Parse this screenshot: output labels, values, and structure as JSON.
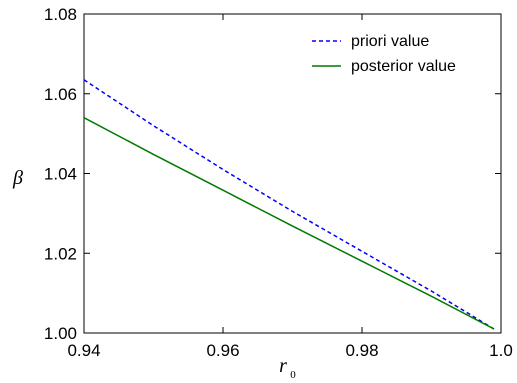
{
  "chart_data": {
    "type": "line",
    "title": "",
    "xlabel": "r",
    "xlabel_subscript": "0",
    "ylabel": "β",
    "xlim": [
      0.94,
      1.0
    ],
    "ylim": [
      1.0,
      1.08
    ],
    "xticks": [
      0.94,
      0.96,
      0.98,
      1.0
    ],
    "xtick_labels": [
      "0.94",
      "0.96",
      "0.98",
      "1.0"
    ],
    "yticks": [
      1.0,
      1.02,
      1.04,
      1.06,
      1.08
    ],
    "ytick_labels": [
      "1.00",
      "1.02",
      "1.04",
      "1.06",
      "1.08"
    ],
    "grid": false,
    "legend_position": "top-right",
    "series": [
      {
        "name": "priori value",
        "color": "#0000ff",
        "style": "dashed",
        "x": [
          0.94,
          0.95,
          0.96,
          0.97,
          0.98,
          0.99,
          0.999
        ],
        "y": [
          1.0635,
          1.052,
          1.041,
          1.0305,
          1.0205,
          1.0105,
          1.001
        ]
      },
      {
        "name": "posterior value",
        "color": "#007a00",
        "style": "solid",
        "x": [
          0.94,
          0.95,
          0.96,
          0.97,
          0.98,
          0.99,
          0.999
        ],
        "y": [
          1.054,
          1.0448,
          1.0358,
          1.0268,
          1.018,
          1.0092,
          1.001
        ]
      }
    ]
  }
}
